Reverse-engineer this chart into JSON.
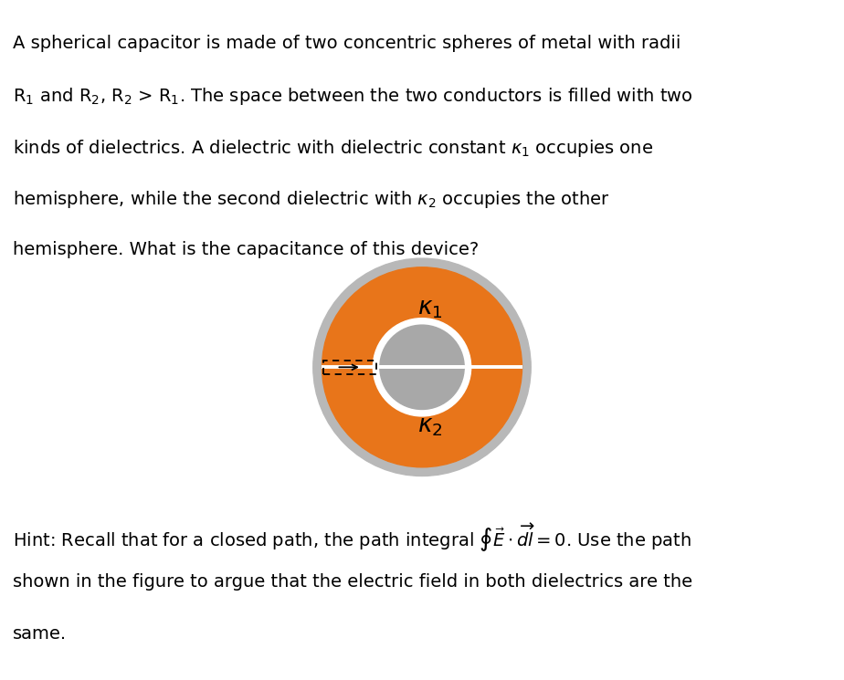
{
  "background_color": "#ffffff",
  "outer_ring_color": "#b8b8b8",
  "orange_color": "#e8751a",
  "inner_sphere_color": "#a8a8a8",
  "white_color": "#ffffff",
  "black_color": "#000000",
  "outer_R": 1.6,
  "orange_R": 1.47,
  "inner_white_R": 0.72,
  "inner_R": 0.62,
  "fig_width": 9.24,
  "fig_height": 7.45,
  "top_lines": [
    "A spherical capacitor is made of two concentric spheres of metal with radii",
    "R$_1$ and R$_2$, R$_2$ > R$_1$. The space between the two conductors is filled with two",
    "kinds of dielectrics. A dielectric with dielectric constant $\\kappa_1$ occupies one",
    "hemisphere, while the second dielectric with $\\kappa_2$ occupies the other",
    "hemisphere. What is the capacitance of this device?"
  ],
  "hint_line1": "Hint: Recall that for a closed path, the path integral $\\oint\\vec{E}\\cdot\\overrightarrow{dl}=0$. Use the path",
  "hint_line2": "shown in the figure to argue that the electric field in both dielectrics are the",
  "hint_line3": "same.",
  "k1_label": "$\\kappa_1$",
  "k2_label": "$\\kappa_2$",
  "text_fontsize": 14.0,
  "label_fontsize": 19
}
